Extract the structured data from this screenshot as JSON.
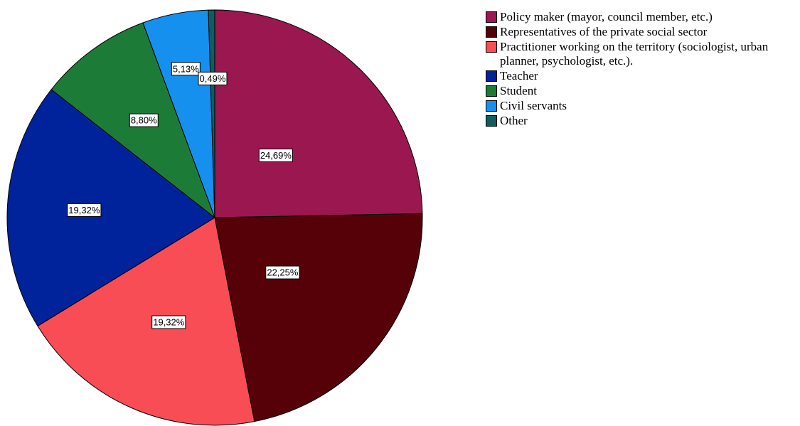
{
  "chart_data": {
    "type": "pie",
    "title": "",
    "legend_position": "top-right",
    "slices": [
      {
        "label": "Policy maker (mayor, council member, etc.)",
        "value": 24.69,
        "value_label": "24,69%",
        "color": "#9B1750"
      },
      {
        "label": "Representatives of the private social sector",
        "value": 22.25,
        "value_label": "22,25%",
        "color": "#560007"
      },
      {
        "label": "Practitioner working on the territory (sociologist, urban planner, psychologist, etc.).",
        "value": 19.32,
        "value_label": "19,32%",
        "color": "#F94D55"
      },
      {
        "label": "Teacher",
        "value": 19.32,
        "value_label": "19,32%",
        "color": "#00229A"
      },
      {
        "label": "Student",
        "value": 8.8,
        "value_label": "8,80%",
        "color": "#1D7B38"
      },
      {
        "label": "Civil servants",
        "value": 5.13,
        "value_label": "5,13%",
        "color": "#1590EE"
      },
      {
        "label": "Other",
        "value": 0.49,
        "value_label": "0,49%",
        "color": "#0E5D5F"
      }
    ]
  }
}
